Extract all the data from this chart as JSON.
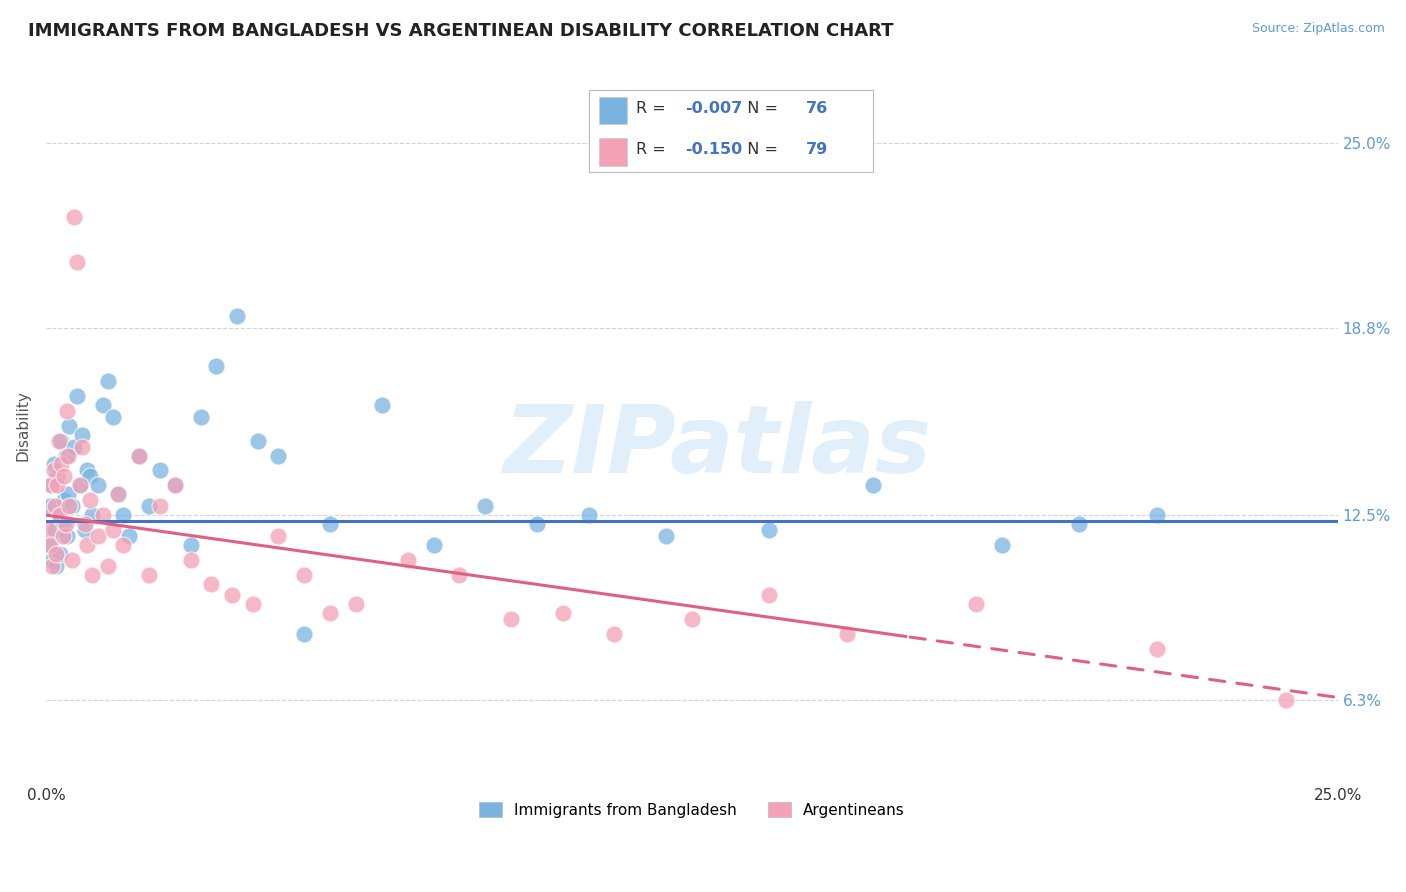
{
  "title": "IMMIGRANTS FROM BANGLADESH VS ARGENTINEAN DISABILITY CORRELATION CHART",
  "source": "Source: ZipAtlas.com",
  "watermark": "ZIPatlas",
  "ylabel": "Disability",
  "xlim": [
    0.0,
    25.0
  ],
  "ylim": [
    3.5,
    27.5
  ],
  "yticks": [
    6.3,
    12.5,
    18.8,
    25.0
  ],
  "ytick_labels_right": [
    "6.3%",
    "12.5%",
    "18.8%",
    "25.0%"
  ],
  "series1_color": "#7ab3e0",
  "series2_color": "#f4a0b5",
  "series1_label": "Immigrants from Bangladesh",
  "series2_label": "Argentineans",
  "series1_R": "-0.007",
  "series1_N": "76",
  "series2_R": "-0.150",
  "series2_N": "79",
  "legend_R_color": "#4472c4",
  "background_color": "#ffffff",
  "grid_color": "#c8c8c8",
  "title_fontsize": 13,
  "trend1_slope": 0.0,
  "trend1_intercept": 12.3,
  "trend2_slope": -0.245,
  "trend2_intercept": 12.5,
  "series1_x": [
    0.05,
    0.08,
    0.1,
    0.12,
    0.15,
    0.18,
    0.2,
    0.22,
    0.25,
    0.28,
    0.3,
    0.32,
    0.35,
    0.38,
    0.4,
    0.42,
    0.45,
    0.5,
    0.55,
    0.6,
    0.65,
    0.7,
    0.75,
    0.8,
    0.85,
    0.9,
    1.0,
    1.1,
    1.2,
    1.3,
    1.4,
    1.5,
    1.6,
    1.8,
    2.0,
    2.2,
    2.5,
    2.8,
    3.0,
    3.3,
    3.7,
    4.1,
    4.5,
    5.0,
    5.5,
    6.5,
    7.5,
    8.5,
    9.5,
    10.5,
    12.0,
    14.0,
    16.0,
    18.5,
    20.0,
    21.5
  ],
  "series1_y": [
    11.5,
    12.8,
    13.5,
    11.0,
    14.2,
    12.0,
    10.8,
    13.8,
    12.5,
    11.2,
    15.0,
    12.2,
    13.0,
    14.5,
    11.8,
    13.2,
    15.5,
    12.8,
    14.8,
    16.5,
    13.5,
    15.2,
    12.0,
    14.0,
    13.8,
    12.5,
    13.5,
    16.2,
    17.0,
    15.8,
    13.2,
    12.5,
    11.8,
    14.5,
    12.8,
    14.0,
    13.5,
    11.5,
    15.8,
    17.5,
    19.2,
    15.0,
    14.5,
    8.5,
    12.2,
    16.2,
    11.5,
    12.8,
    12.2,
    12.5,
    11.8,
    12.0,
    13.5,
    11.5,
    12.2,
    12.5
  ],
  "series2_x": [
    0.05,
    0.08,
    0.1,
    0.12,
    0.15,
    0.18,
    0.2,
    0.22,
    0.25,
    0.28,
    0.3,
    0.32,
    0.35,
    0.38,
    0.4,
    0.42,
    0.45,
    0.5,
    0.55,
    0.6,
    0.65,
    0.7,
    0.75,
    0.8,
    0.85,
    0.9,
    1.0,
    1.1,
    1.2,
    1.3,
    1.4,
    1.5,
    1.8,
    2.0,
    2.2,
    2.5,
    2.8,
    3.2,
    3.6,
    4.0,
    4.5,
    5.0,
    5.5,
    6.0,
    7.0,
    8.0,
    9.0,
    10.0,
    11.0,
    12.5,
    14.0,
    15.5,
    18.0,
    21.5,
    24.0
  ],
  "series2_y": [
    12.0,
    11.5,
    13.5,
    10.8,
    14.0,
    12.8,
    11.2,
    13.5,
    15.0,
    12.5,
    14.2,
    11.8,
    13.8,
    12.2,
    16.0,
    14.5,
    12.8,
    11.0,
    22.5,
    21.0,
    13.5,
    14.8,
    12.2,
    11.5,
    13.0,
    10.5,
    11.8,
    12.5,
    10.8,
    12.0,
    13.2,
    11.5,
    14.5,
    10.5,
    12.8,
    13.5,
    11.0,
    10.2,
    9.8,
    9.5,
    11.8,
    10.5,
    9.2,
    9.5,
    11.0,
    10.5,
    9.0,
    9.2,
    8.5,
    9.0,
    9.8,
    8.5,
    9.5,
    8.0,
    6.3
  ]
}
